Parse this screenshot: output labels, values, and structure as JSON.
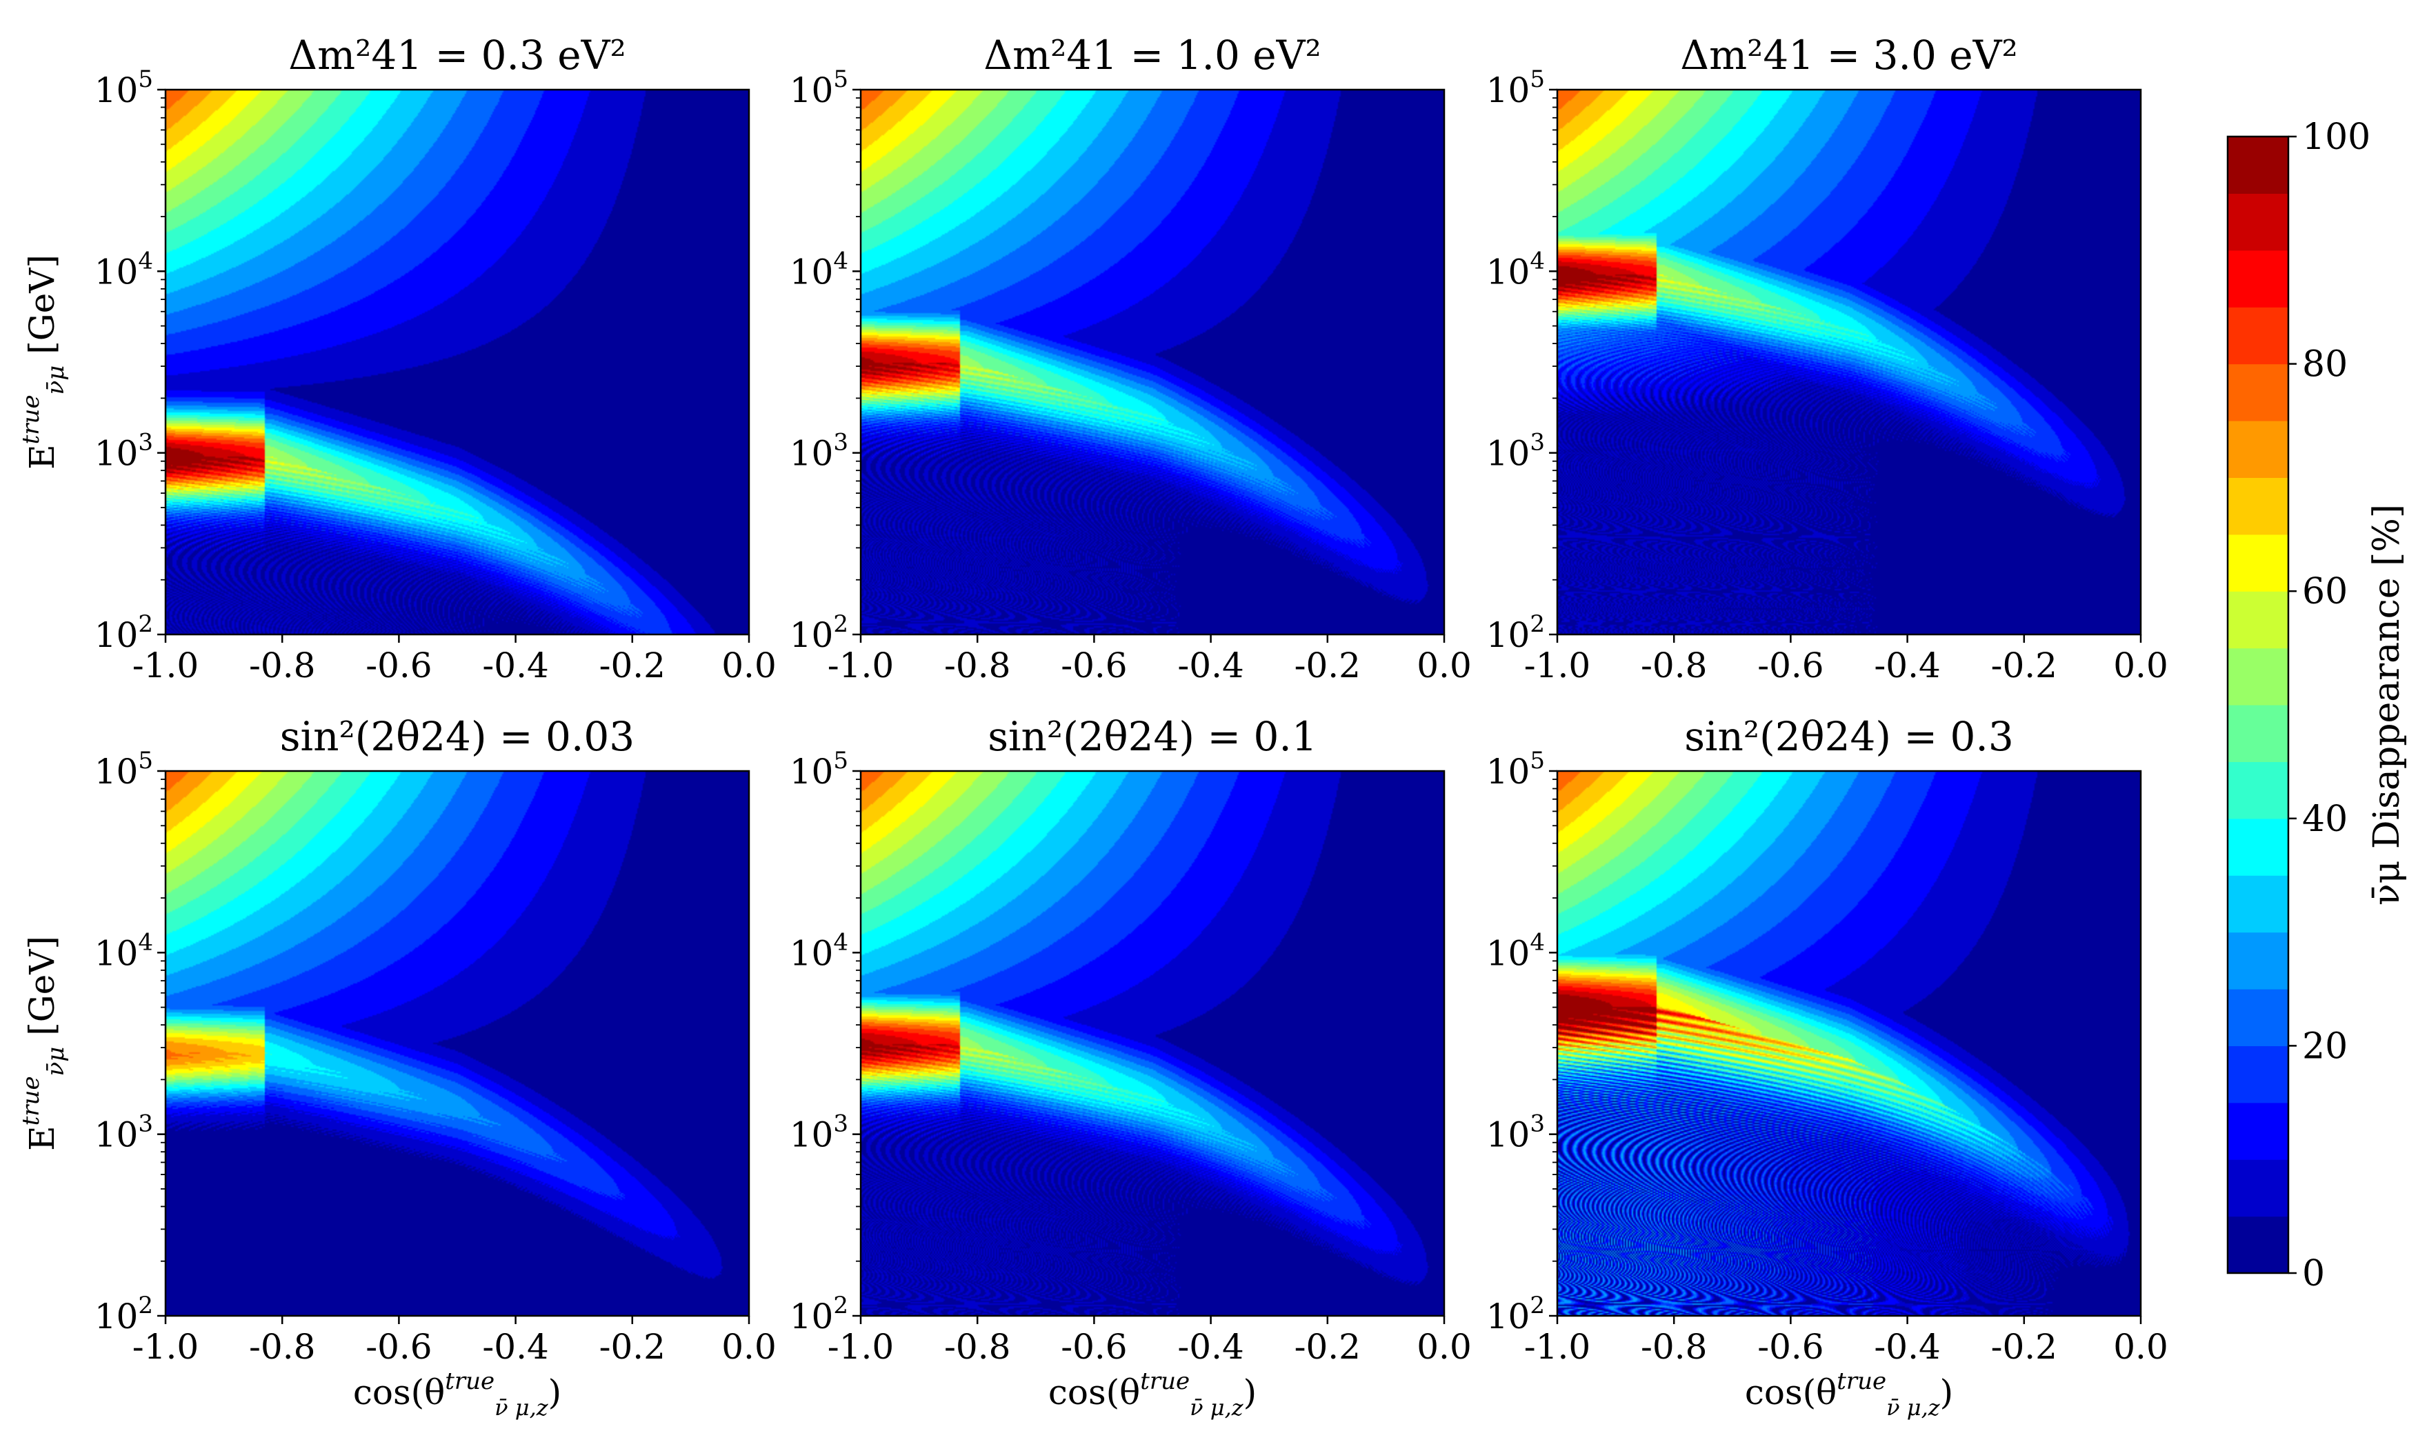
{
  "chart_data": {
    "type": "heatmap",
    "x_label": "cos(θ true ν̄ μ,z)",
    "y_label": "E true ν̄μ [GeV]",
    "x_range": [
      -1.0,
      0.0
    ],
    "y_range": [
      100,
      100000
    ],
    "y_scale": "log",
    "x_ticks": [
      "-1.0",
      "-0.8",
      "-0.6",
      "-0.4",
      "-0.2",
      "0.0"
    ],
    "y_ticks": [
      {
        "base": "10",
        "exp": "2"
      },
      {
        "base": "10",
        "exp": "3"
      },
      {
        "base": "10",
        "exp": "4"
      },
      {
        "base": "10",
        "exp": "5"
      }
    ],
    "colorbar": {
      "label": "ν̄μ Disappearance [%]",
      "range": [
        0,
        100
      ],
      "ticks": [
        "0",
        "20",
        "40",
        "60",
        "80",
        "100"
      ],
      "colormap": "jet"
    },
    "panels": [
      {
        "title": "Δm²41 = 0.3 eV²",
        "row": 0,
        "col": 0,
        "dm2_eV2": 0.3,
        "sin2_2theta24": 0.1,
        "resonance_energy_GeV": 850,
        "max_disappearance_pct": 95
      },
      {
        "title": "Δm²41 = 1.0 eV²",
        "row": 0,
        "col": 1,
        "dm2_eV2": 1.0,
        "sin2_2theta24": 0.1,
        "resonance_energy_GeV": 2800,
        "max_disappearance_pct": 92
      },
      {
        "title": "Δm²41 = 3.0 eV²",
        "row": 0,
        "col": 2,
        "dm2_eV2": 3.0,
        "sin2_2theta24": 0.1,
        "resonance_energy_GeV": 8500,
        "max_disappearance_pct": 95
      },
      {
        "title": "sin²(2θ24) = 0.03",
        "row": 1,
        "col": 0,
        "dm2_eV2": 1.0,
        "sin2_2theta24": 0.03,
        "resonance_energy_GeV": 2500,
        "max_disappearance_pct": 72
      },
      {
        "title": "sin²(2θ24) = 0.1",
        "row": 1,
        "col": 1,
        "dm2_eV2": 1.0,
        "sin2_2theta24": 0.1,
        "resonance_energy_GeV": 2800,
        "max_disappearance_pct": 92
      },
      {
        "title": "sin²(2θ24) = 0.3",
        "row": 1,
        "col": 2,
        "dm2_eV2": 1.0,
        "sin2_2theta24": 0.3,
        "resonance_energy_GeV": 4500,
        "max_disappearance_pct": 97
      }
    ]
  }
}
